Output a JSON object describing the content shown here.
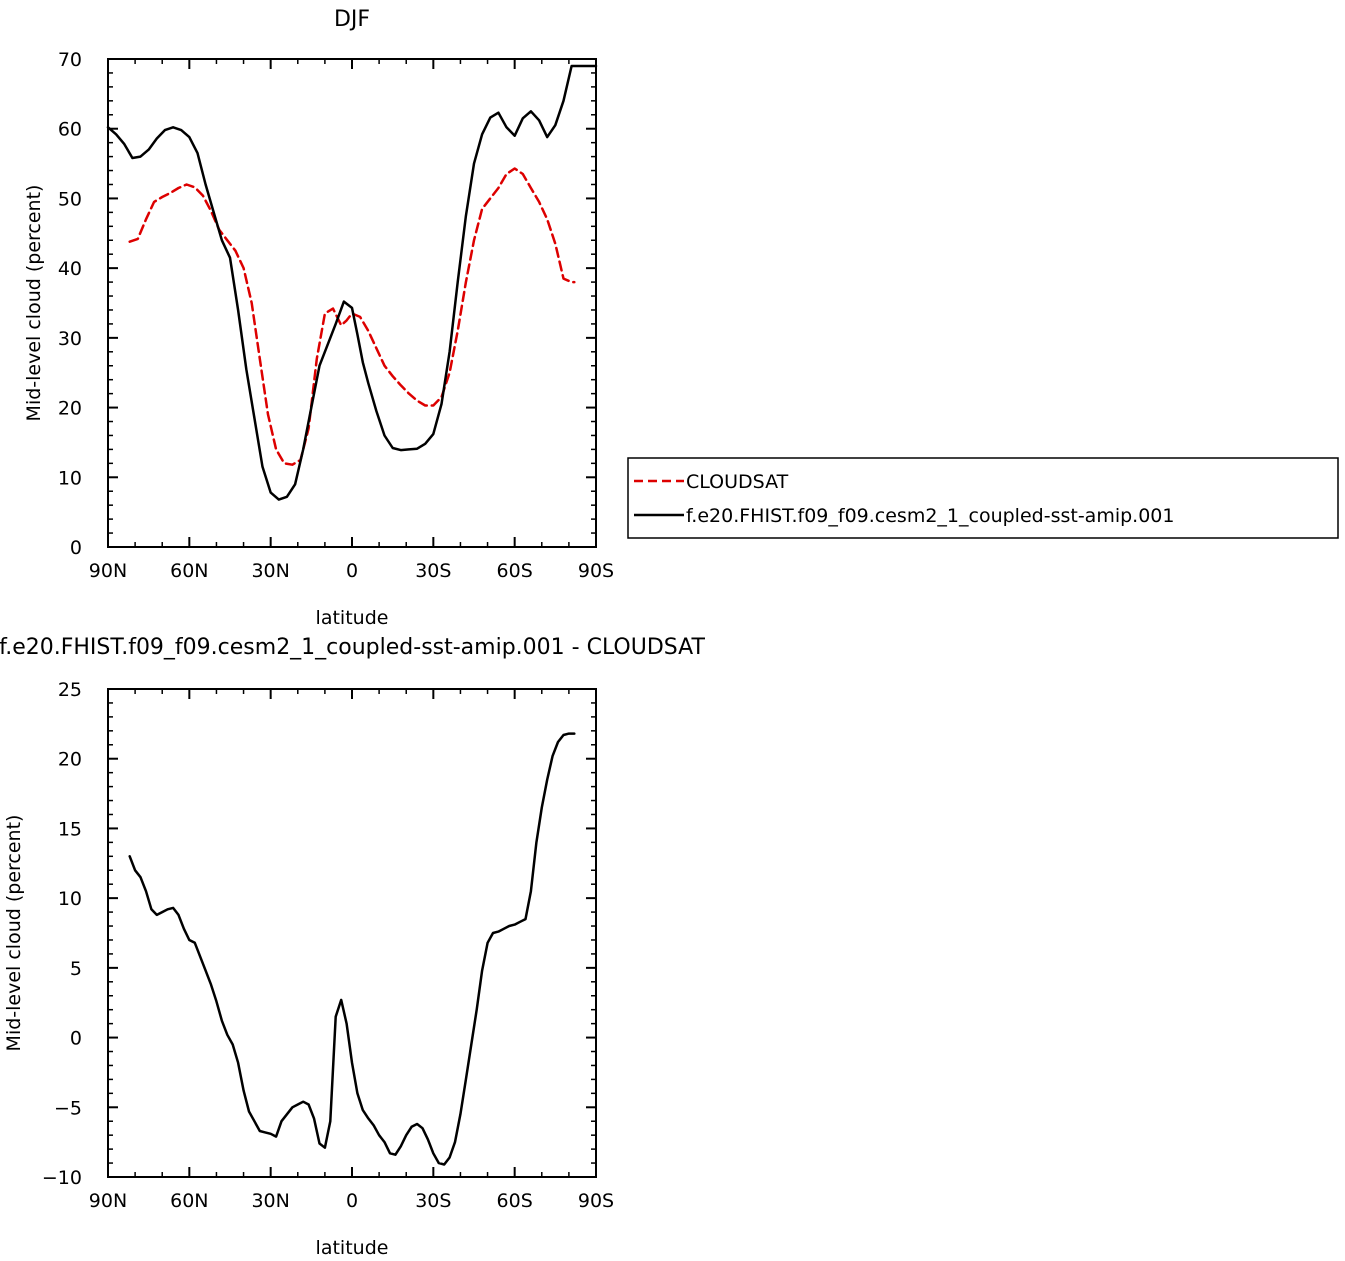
{
  "chart_data": [
    {
      "type": "line",
      "title": "DJF",
      "xlabel": "latitude",
      "ylabel": "Mid-level cloud (percent)",
      "xlim": [
        90,
        -90
      ],
      "ylim": [
        0,
        70
      ],
      "x_ticks": [
        90,
        60,
        30,
        0,
        -30,
        -60,
        -90
      ],
      "x_tick_labels": [
        "90N",
        "60N",
        "30N",
        "0",
        "30S",
        "60S",
        "90S"
      ],
      "y_ticks": [
        0,
        10,
        20,
        30,
        40,
        50,
        60,
        70
      ],
      "y_tick_labels": [
        "0",
        "10",
        "20",
        "30",
        "40",
        "50",
        "60",
        "70"
      ],
      "legend_position": "right",
      "series": [
        {
          "name": "CLOUDSAT",
          "color": "#dd0000",
          "dash": "dashed",
          "x": [
            82,
            79,
            76,
            73,
            70,
            67,
            64,
            61,
            58,
            55,
            52,
            49,
            46,
            43,
            40,
            37,
            34,
            31,
            28,
            25,
            22,
            19,
            16,
            13,
            10,
            7,
            4,
            2,
            0,
            -3,
            -6,
            -9,
            -12,
            -15,
            -18,
            -21,
            -24,
            -27,
            -30,
            -33,
            -36,
            -39,
            -42,
            -45,
            -48,
            -51,
            -54,
            -57,
            -60,
            -63,
            -66,
            -69,
            -72,
            -75,
            -78,
            -81,
            -82
          ],
          "y": [
            43.8,
            44.2,
            47.0,
            49.5,
            50.2,
            50.8,
            51.5,
            52.0,
            51.6,
            50.4,
            48.2,
            45.5,
            44.0,
            42.5,
            40.0,
            35.0,
            27.0,
            19.0,
            14.0,
            12.0,
            11.8,
            12.5,
            17.0,
            27.0,
            33.5,
            34.2,
            31.8,
            32.5,
            33.5,
            33.0,
            31.0,
            28.5,
            26.0,
            24.5,
            23.2,
            22.0,
            21.0,
            20.3,
            20.3,
            21.5,
            25.0,
            31.0,
            38.0,
            44.0,
            48.5,
            50.0,
            51.5,
            53.5,
            54.3,
            53.5,
            51.5,
            49.5,
            47.0,
            43.5,
            38.5,
            38.0,
            38.0
          ]
        },
        {
          "name": "f.e20.FHIST.f09_f09.cesm2_1_coupled-sst-amip.001",
          "color": "#000000",
          "dash": "solid",
          "x": [
            90,
            87,
            84,
            81,
            78,
            75,
            72,
            69,
            66,
            63,
            60,
            57,
            54,
            51,
            48,
            45,
            42,
            39,
            36,
            33,
            30,
            27,
            24,
            21,
            18,
            15,
            12,
            9,
            6,
            3,
            0,
            -2,
            -4,
            -6,
            -9,
            -12,
            -15,
            -18,
            -21,
            -24,
            -27,
            -30,
            -33,
            -36,
            -39,
            -42,
            -45,
            -48,
            -51,
            -54,
            -57,
            -60,
            -63,
            -66,
            -69,
            -72,
            -75,
            -78,
            -81,
            -84,
            -87,
            -90
          ],
          "y": [
            60.2,
            59.2,
            57.8,
            55.8,
            56.0,
            57.0,
            58.6,
            59.8,
            60.2,
            59.8,
            58.8,
            56.5,
            52.0,
            48.0,
            44.0,
            41.5,
            34.0,
            25.5,
            18.5,
            11.5,
            7.8,
            6.8,
            7.2,
            9.0,
            14.0,
            20.0,
            26.0,
            29.0,
            32.0,
            35.2,
            34.3,
            30.5,
            26.5,
            23.5,
            19.5,
            16.0,
            14.2,
            13.9,
            14.0,
            14.1,
            14.8,
            16.2,
            20.5,
            28.0,
            38.0,
            47.5,
            55.0,
            59.2,
            61.6,
            62.3,
            60.2,
            59.0,
            61.5,
            62.5,
            61.2,
            58.8,
            60.5,
            64.0,
            69.0,
            69.0,
            69.0,
            69.0
          ]
        }
      ]
    },
    {
      "type": "line",
      "title": "f.e20.FHIST.f09_f09.cesm2_1_coupled-sst-amip.001  -  CLOUDSAT",
      "xlabel": "latitude",
      "ylabel": "Mid-level cloud (percent)",
      "xlim": [
        90,
        -90
      ],
      "ylim": [
        -10,
        25
      ],
      "x_ticks": [
        90,
        60,
        30,
        0,
        -30,
        -60,
        -90
      ],
      "x_tick_labels": [
        "90N",
        "60N",
        "30N",
        "0",
        "30S",
        "60S",
        "90S"
      ],
      "y_ticks": [
        -10,
        -5,
        0,
        5,
        10,
        15,
        20,
        25
      ],
      "y_tick_labels": [
        "−10",
        "−5",
        "0",
        "5",
        "10",
        "15",
        "20",
        "25"
      ],
      "series": [
        {
          "color": "#000000",
          "dash": "solid",
          "x": [
            82,
            80,
            78,
            76,
            74,
            72,
            70,
            68,
            66,
            64,
            62,
            60,
            58,
            56,
            54,
            52,
            50,
            48,
            46,
            44,
            42,
            40,
            38,
            36,
            34,
            32,
            30,
            28,
            26,
            24,
            22,
            20,
            18,
            16,
            14,
            12,
            10,
            8,
            6,
            4,
            2,
            0,
            -2,
            -4,
            -6,
            -8,
            -10,
            -12,
            -14,
            -16,
            -18,
            -20,
            -22,
            -24,
            -26,
            -28,
            -30,
            -32,
            -34,
            -36,
            -38,
            -40,
            -42,
            -44,
            -46,
            -48,
            -50,
            -52,
            -54,
            -56,
            -58,
            -60,
            -62,
            -64,
            -66,
            -68,
            -70,
            -72,
            -74,
            -76,
            -78,
            -80,
            -82
          ],
          "y": [
            13.0,
            12.0,
            11.5,
            10.5,
            9.2,
            8.8,
            9.0,
            9.2,
            9.3,
            8.8,
            7.8,
            7.0,
            6.8,
            5.8,
            4.8,
            3.8,
            2.6,
            1.2,
            0.2,
            -0.5,
            -1.8,
            -3.8,
            -5.3,
            -6.0,
            -6.7,
            -6.8,
            -6.9,
            -7.1,
            -6.0,
            -5.5,
            -5.0,
            -4.8,
            -4.6,
            -4.8,
            -5.8,
            -7.6,
            -7.9,
            -6.0,
            1.5,
            2.7,
            1.0,
            -1.8,
            -4.0,
            -5.2,
            -5.8,
            -6.3,
            -7.0,
            -7.5,
            -8.3,
            -8.4,
            -7.8,
            -7.0,
            -6.4,
            -6.2,
            -6.5,
            -7.3,
            -8.3,
            -9.0,
            -9.1,
            -8.6,
            -7.5,
            -5.5,
            -3.0,
            -0.5,
            2.0,
            4.8,
            6.8,
            7.5,
            7.6,
            7.8,
            8.0,
            8.1,
            8.3,
            8.5,
            10.5,
            14.0,
            16.5,
            18.5,
            20.2,
            21.2,
            21.7,
            21.8,
            21.8
          ]
        }
      ]
    }
  ]
}
